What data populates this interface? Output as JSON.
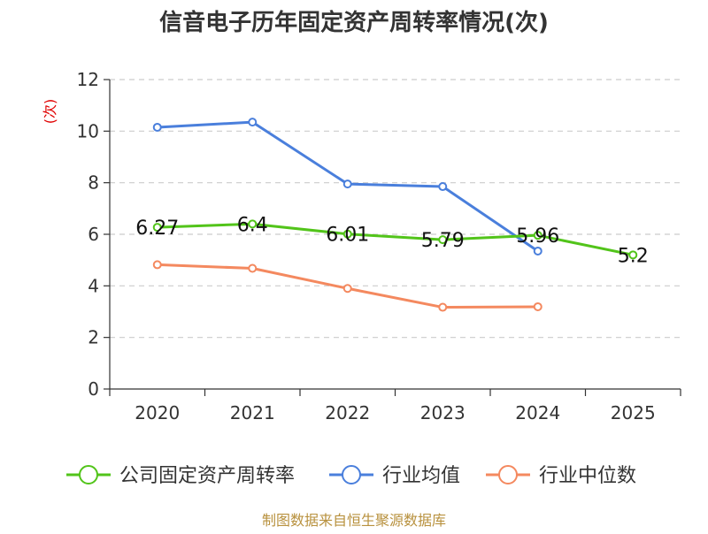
{
  "chart_data": {
    "type": "line",
    "title": "信音电子历年固定资产周转率情况(次)",
    "ylabel": "(次)",
    "xlabel": "",
    "categories": [
      "2020",
      "2021",
      "2022",
      "2023",
      "2024",
      "2025"
    ],
    "ylim": [
      0,
      12
    ],
    "yticks": [
      0,
      2,
      4,
      6,
      8,
      10,
      12
    ],
    "grid": true,
    "legend_position": "bottom",
    "series": [
      {
        "name": "公司固定资产周转率",
        "color": "#52c41a",
        "values": [
          6.27,
          6.4,
          6.01,
          5.79,
          5.96,
          5.2
        ],
        "labels": [
          "6.27",
          "6.4",
          "6.01",
          "5.79",
          "5.96",
          "5.2"
        ]
      },
      {
        "name": "行业均值",
        "color": "#4a7fdc",
        "values": [
          10.15,
          10.35,
          7.95,
          7.85,
          5.35,
          null
        ]
      },
      {
        "name": "行业中位数",
        "color": "#f4895f",
        "values": [
          4.82,
          4.68,
          3.9,
          3.17,
          3.19,
          null
        ]
      }
    ]
  },
  "source_text": "制图数据来自恒生聚源数据库"
}
